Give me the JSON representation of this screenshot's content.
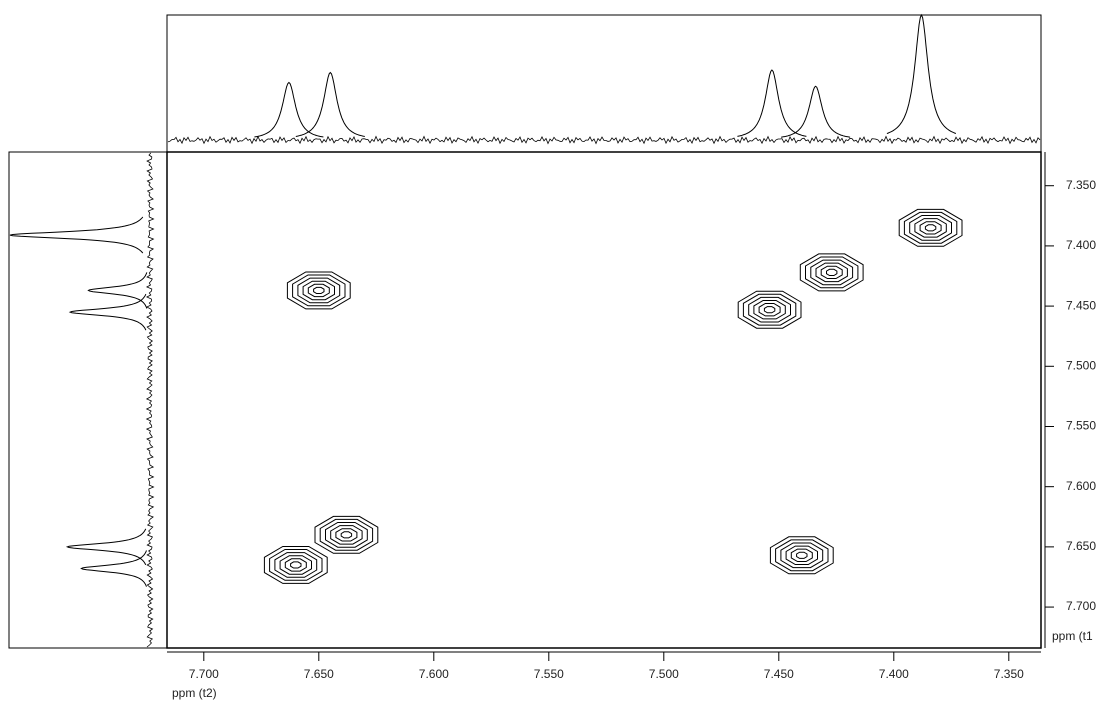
{
  "chart_data": {
    "type": "contour",
    "x_label": "ppm (t2)",
    "y_label": "ppm (t1",
    "xlim": [
      7.716,
      7.336
    ],
    "ylim": [
      7.322,
      7.734
    ],
    "xticks": [
      {
        "value": 7.7,
        "label": "7.700"
      },
      {
        "value": 7.65,
        "label": "7.650"
      },
      {
        "value": 7.6,
        "label": "7.600"
      },
      {
        "value": 7.55,
        "label": "7.550"
      },
      {
        "value": 7.5,
        "label": "7.500"
      },
      {
        "value": 7.45,
        "label": "7.450"
      },
      {
        "value": 7.4,
        "label": "7.400"
      },
      {
        "value": 7.35,
        "label": "7.350"
      }
    ],
    "yticks": [
      {
        "value": 7.35,
        "label": "7.350"
      },
      {
        "value": 7.4,
        "label": "7.400"
      },
      {
        "value": 7.45,
        "label": "7.450"
      },
      {
        "value": 7.5,
        "label": "7.500"
      },
      {
        "value": 7.55,
        "label": "7.550"
      },
      {
        "value": 7.6,
        "label": "7.600"
      },
      {
        "value": 7.65,
        "label": "7.650"
      },
      {
        "value": 7.7,
        "label": "7.700"
      }
    ],
    "cross_peaks": {
      "x": [
        7.65,
        7.638,
        7.66,
        7.44,
        7.384,
        7.427,
        7.454
      ],
      "y": [
        7.437,
        7.64,
        7.665,
        7.657,
        7.385,
        7.422,
        7.453
      ]
    },
    "top_projection": {
      "ppm": [
        7.663,
        7.645,
        7.453,
        7.434,
        7.388
      ],
      "intensity": [
        46,
        54,
        56,
        43,
        100
      ]
    },
    "left_projection": {
      "ppm": [
        7.391,
        7.437,
        7.455,
        7.65,
        7.668
      ],
      "intensity": [
        100,
        44,
        57,
        59,
        49
      ]
    },
    "color": "#000000"
  }
}
